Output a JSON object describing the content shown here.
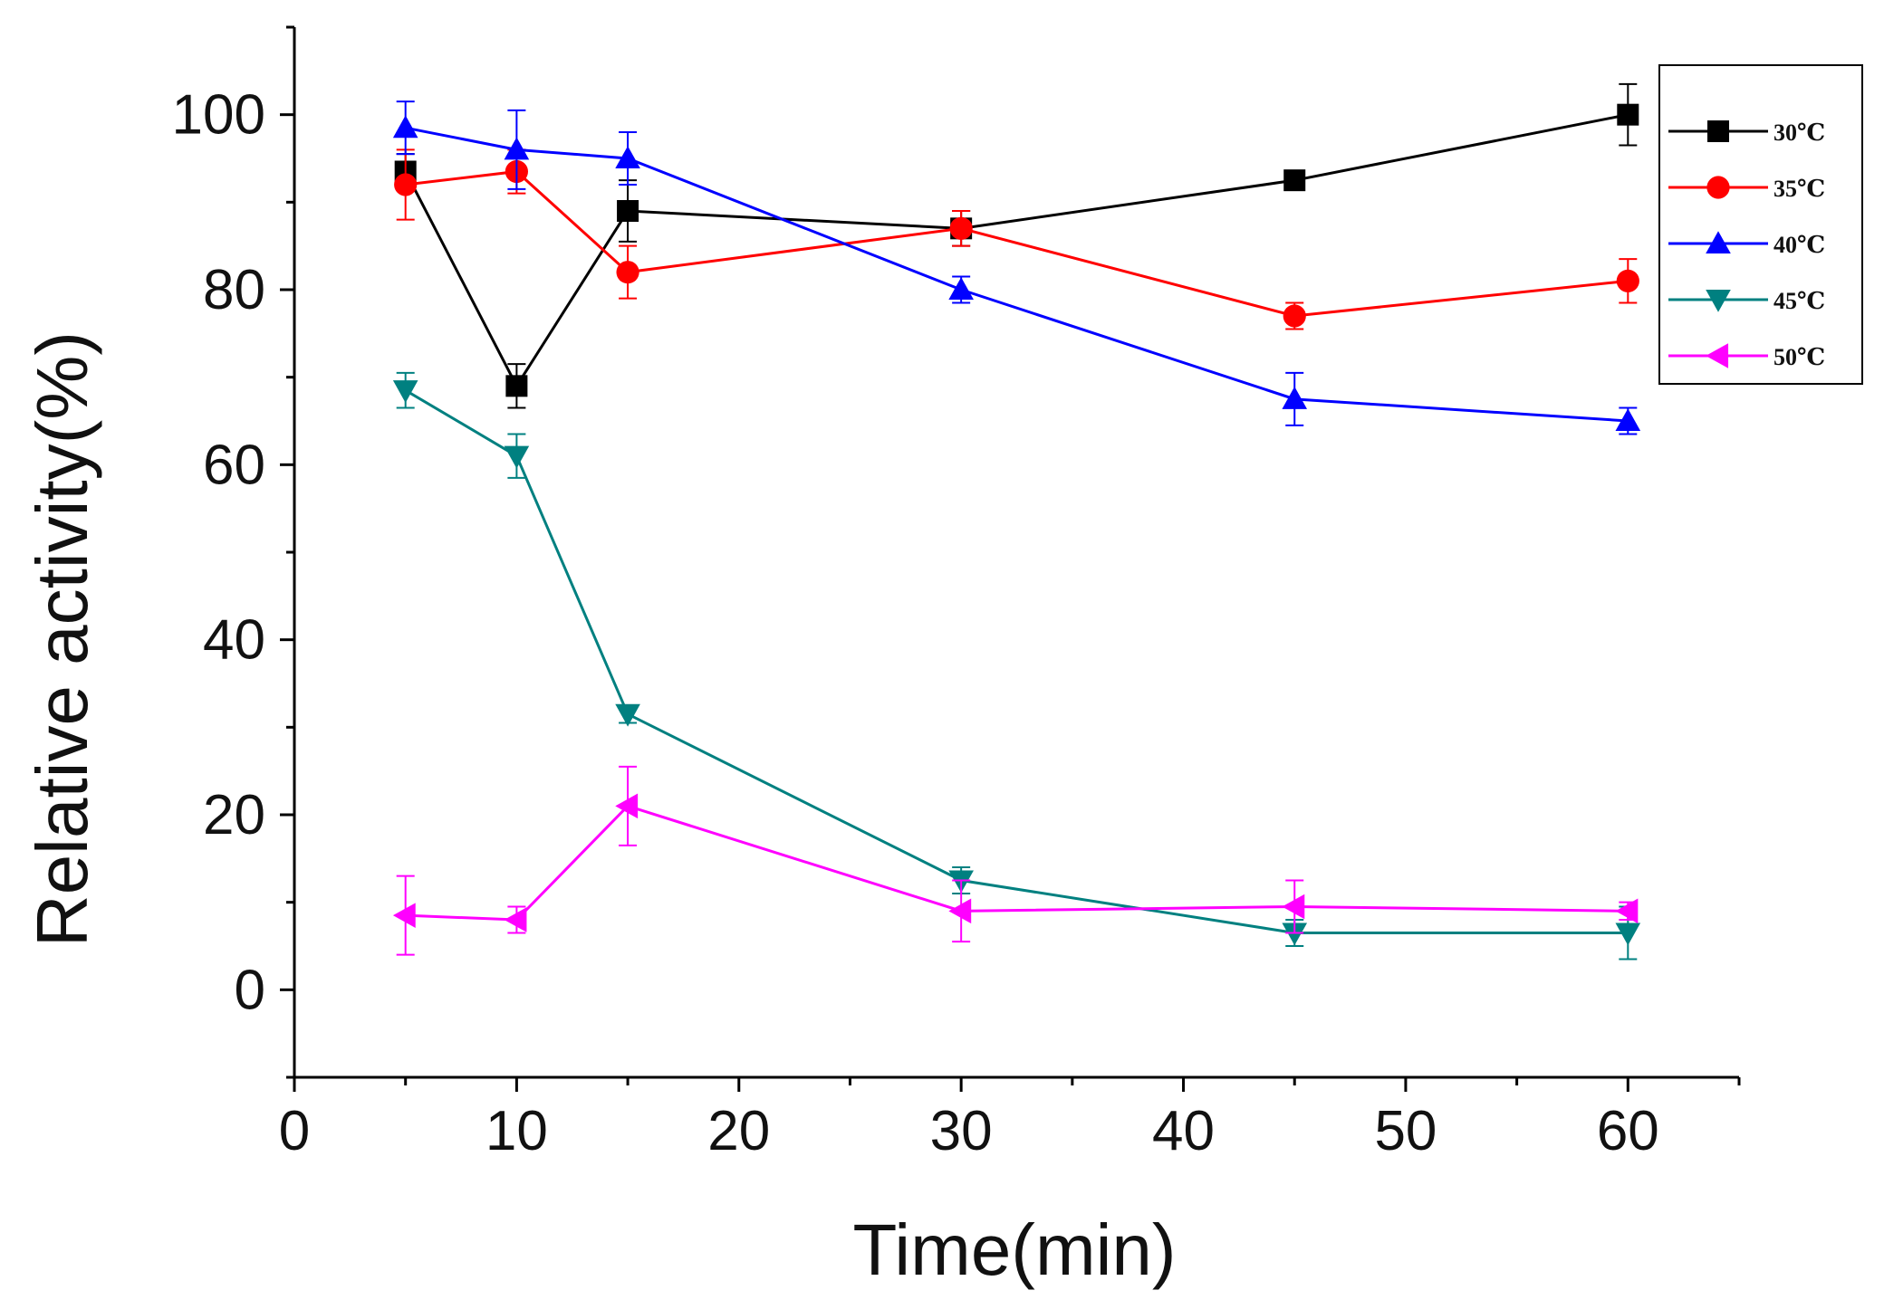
{
  "chart_data": {
    "type": "line",
    "title": "",
    "xlabel": "Time(min)",
    "ylabel": "Relative activity(%)",
    "xlim": [
      0,
      65
    ],
    "ylim": [
      -10,
      110
    ],
    "xticks": [
      0,
      10,
      20,
      30,
      40,
      50,
      60
    ],
    "yticks": [
      0,
      20,
      40,
      60,
      80,
      100
    ],
    "x": [
      5,
      10,
      15,
      30,
      45,
      60
    ],
    "grid": false,
    "legend_position": "top-right",
    "series": [
      {
        "name": "30℃",
        "color": "#000000",
        "marker": "square",
        "values": [
          93.5,
          69,
          89,
          87,
          92.5,
          100
        ],
        "errors": [
          2,
          2.5,
          3.5,
          2,
          1,
          3.5
        ]
      },
      {
        "name": "35℃",
        "color": "#ff0000",
        "marker": "circle",
        "values": [
          92,
          93.5,
          82,
          87,
          77,
          81
        ],
        "errors": [
          4,
          2.5,
          3,
          2,
          1.5,
          2.5
        ]
      },
      {
        "name": "40℃",
        "color": "#0000ff",
        "marker": "triangle-up",
        "values": [
          98.5,
          96,
          95,
          80,
          67.5,
          65
        ],
        "errors": [
          3,
          4.5,
          3,
          1.5,
          3,
          1.5
        ]
      },
      {
        "name": "45℃",
        "color": "#008080",
        "marker": "triangle-down",
        "values": [
          68.5,
          61,
          31.5,
          12.5,
          6.5,
          6.5
        ],
        "errors": [
          2,
          2.5,
          1,
          1.5,
          1.5,
          3
        ]
      },
      {
        "name": "50℃",
        "color": "#ff00ff",
        "marker": "triangle-left",
        "values": [
          8.5,
          8,
          21,
          9,
          9.5,
          9
        ],
        "errors": [
          4.5,
          1.5,
          4.5,
          3.5,
          3,
          1
        ]
      }
    ]
  }
}
